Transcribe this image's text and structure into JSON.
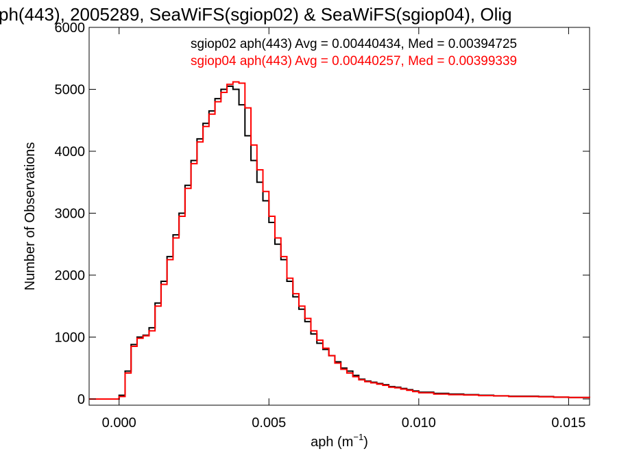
{
  "chart_data": {
    "type": "line",
    "step": true,
    "title": "ph(443), 2005289, SeaWiFS(sgiop02) & SeaWiFS(sgiop04), Olig",
    "xlabel_main": "aph (m",
    "xlabel_sup": "−1",
    "xlabel_end": ")",
    "ylabel": "Number of Observations",
    "xlim": [
      -0.001,
      0.0157
    ],
    "ylim": [
      -100,
      6000
    ],
    "xticks": [
      0.0,
      0.005,
      0.01,
      0.015
    ],
    "xtick_labels": [
      "0.000",
      "0.005",
      "0.010",
      "0.015"
    ],
    "yticks": [
      0,
      1000,
      2000,
      3000,
      4000,
      5000,
      6000
    ],
    "ytick_labels": [
      "0",
      "1000",
      "2000",
      "3000",
      "4000",
      "5000",
      "6000"
    ],
    "grid": false,
    "legend_position": "top-right",
    "series": [
      {
        "label": "sgiop02 aph(443) Avg = 0.00440434, Med = 0.00394725",
        "color": "#000000",
        "x": [
          -0.001,
          -0.0003,
          0.0,
          0.0002,
          0.0004,
          0.0006,
          0.0008,
          0.001,
          0.0012,
          0.0014,
          0.0016,
          0.0018,
          0.002,
          0.0022,
          0.0024,
          0.0026,
          0.0028,
          0.003,
          0.0032,
          0.0034,
          0.0036,
          0.0038,
          0.004,
          0.0042,
          0.0044,
          0.0046,
          0.0048,
          0.005,
          0.0052,
          0.0054,
          0.0056,
          0.0058,
          0.006,
          0.0062,
          0.0064,
          0.0066,
          0.0068,
          0.007,
          0.0072,
          0.0074,
          0.0076,
          0.0078,
          0.008,
          0.0082,
          0.0084,
          0.0086,
          0.0088,
          0.009,
          0.0092,
          0.0094,
          0.0096,
          0.0098,
          0.01,
          0.0105,
          0.011,
          0.0115,
          0.012,
          0.0125,
          0.013,
          0.0135,
          0.014,
          0.0145,
          0.015,
          0.0157
        ],
        "y": [
          0,
          0,
          60,
          450,
          880,
          1000,
          1030,
          1150,
          1550,
          1900,
          2300,
          2650,
          3000,
          3450,
          3850,
          4200,
          4450,
          4650,
          4850,
          5000,
          5050,
          5000,
          4750,
          4250,
          3850,
          3500,
          3200,
          2850,
          2500,
          2250,
          1900,
          1650,
          1450,
          1250,
          1050,
          900,
          800,
          700,
          600,
          500,
          450,
          380,
          320,
          290,
          270,
          250,
          230,
          200,
          190,
          170,
          150,
          130,
          110,
          90,
          80,
          70,
          60,
          50,
          45,
          45,
          40,
          30,
          25,
          20
        ]
      },
      {
        "label": "sgiop04 aph(443) Avg = 0.00440257, Med = 0.00399339",
        "color": "#ff0000",
        "x": [
          -0.001,
          -0.0003,
          0.0,
          0.0002,
          0.0004,
          0.0006,
          0.0008,
          0.001,
          0.0012,
          0.0014,
          0.0016,
          0.0018,
          0.002,
          0.0022,
          0.0024,
          0.0026,
          0.0028,
          0.003,
          0.0032,
          0.0034,
          0.0036,
          0.0038,
          0.004,
          0.0042,
          0.0044,
          0.0046,
          0.0048,
          0.005,
          0.0052,
          0.0054,
          0.0056,
          0.0058,
          0.006,
          0.0062,
          0.0064,
          0.0066,
          0.0068,
          0.007,
          0.0072,
          0.0074,
          0.0076,
          0.0078,
          0.008,
          0.0082,
          0.0084,
          0.0086,
          0.0088,
          0.009,
          0.0092,
          0.0094,
          0.0096,
          0.0098,
          0.01,
          0.0105,
          0.011,
          0.0115,
          0.012,
          0.0125,
          0.013,
          0.0135,
          0.014,
          0.0145,
          0.015,
          0.0157
        ],
        "y": [
          0,
          0,
          40,
          420,
          850,
          980,
          1020,
          1100,
          1500,
          1850,
          2250,
          2600,
          2950,
          3400,
          3800,
          4150,
          4400,
          4600,
          4800,
          4950,
          5080,
          5120,
          5100,
          4700,
          4100,
          3700,
          3350,
          2950,
          2600,
          2300,
          1950,
          1700,
          1500,
          1300,
          1100,
          950,
          820,
          700,
          580,
          480,
          420,
          360,
          310,
          280,
          260,
          240,
          220,
          190,
          180,
          160,
          140,
          120,
          100,
          80,
          70,
          65,
          55,
          50,
          40,
          40,
          35,
          30,
          25,
          20
        ]
      }
    ]
  }
}
